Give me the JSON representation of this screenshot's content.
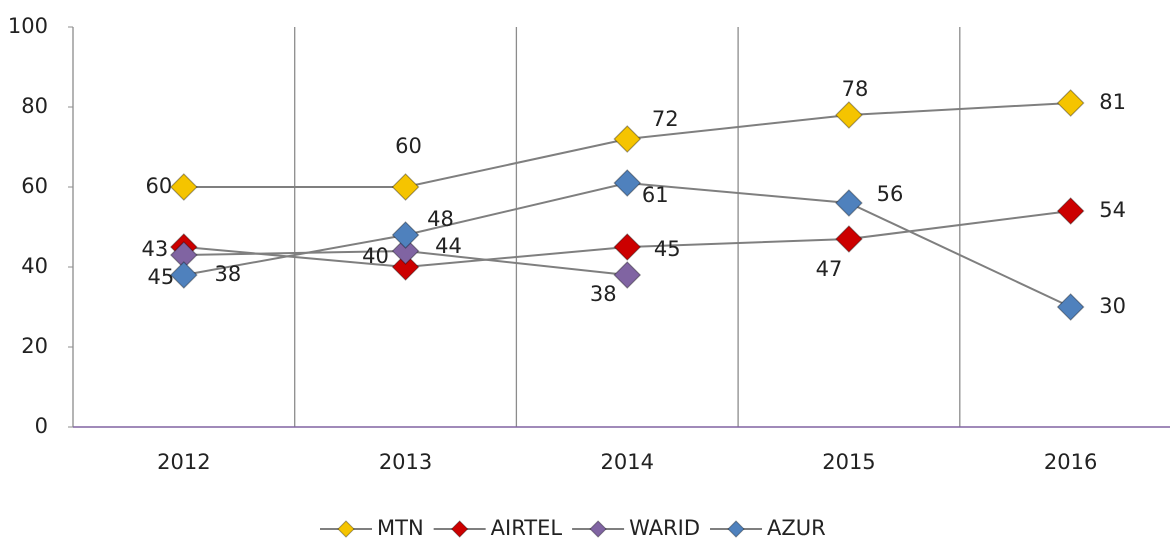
{
  "chart_data": {
    "type": "line",
    "categories": [
      "2012",
      "2013",
      "2014",
      "2015",
      "2016"
    ],
    "series": [
      {
        "name": "MTN",
        "color": "#f5c400",
        "values": [
          60,
          60,
          72,
          78,
          81
        ]
      },
      {
        "name": "AIRTEL",
        "color": "#cc0000",
        "values": [
          45,
          40,
          45,
          47,
          54
        ]
      },
      {
        "name": "WARID",
        "color": "#8064a2",
        "values": [
          43,
          44,
          38,
          null,
          null
        ]
      },
      {
        "name": "AZUR",
        "color": "#4f81bd",
        "values": [
          38,
          48,
          61,
          56,
          30
        ]
      }
    ],
    "ylim": [
      0,
      100
    ],
    "yticks": [
      0,
      20,
      40,
      60,
      80,
      100
    ],
    "legend": "bottom"
  }
}
